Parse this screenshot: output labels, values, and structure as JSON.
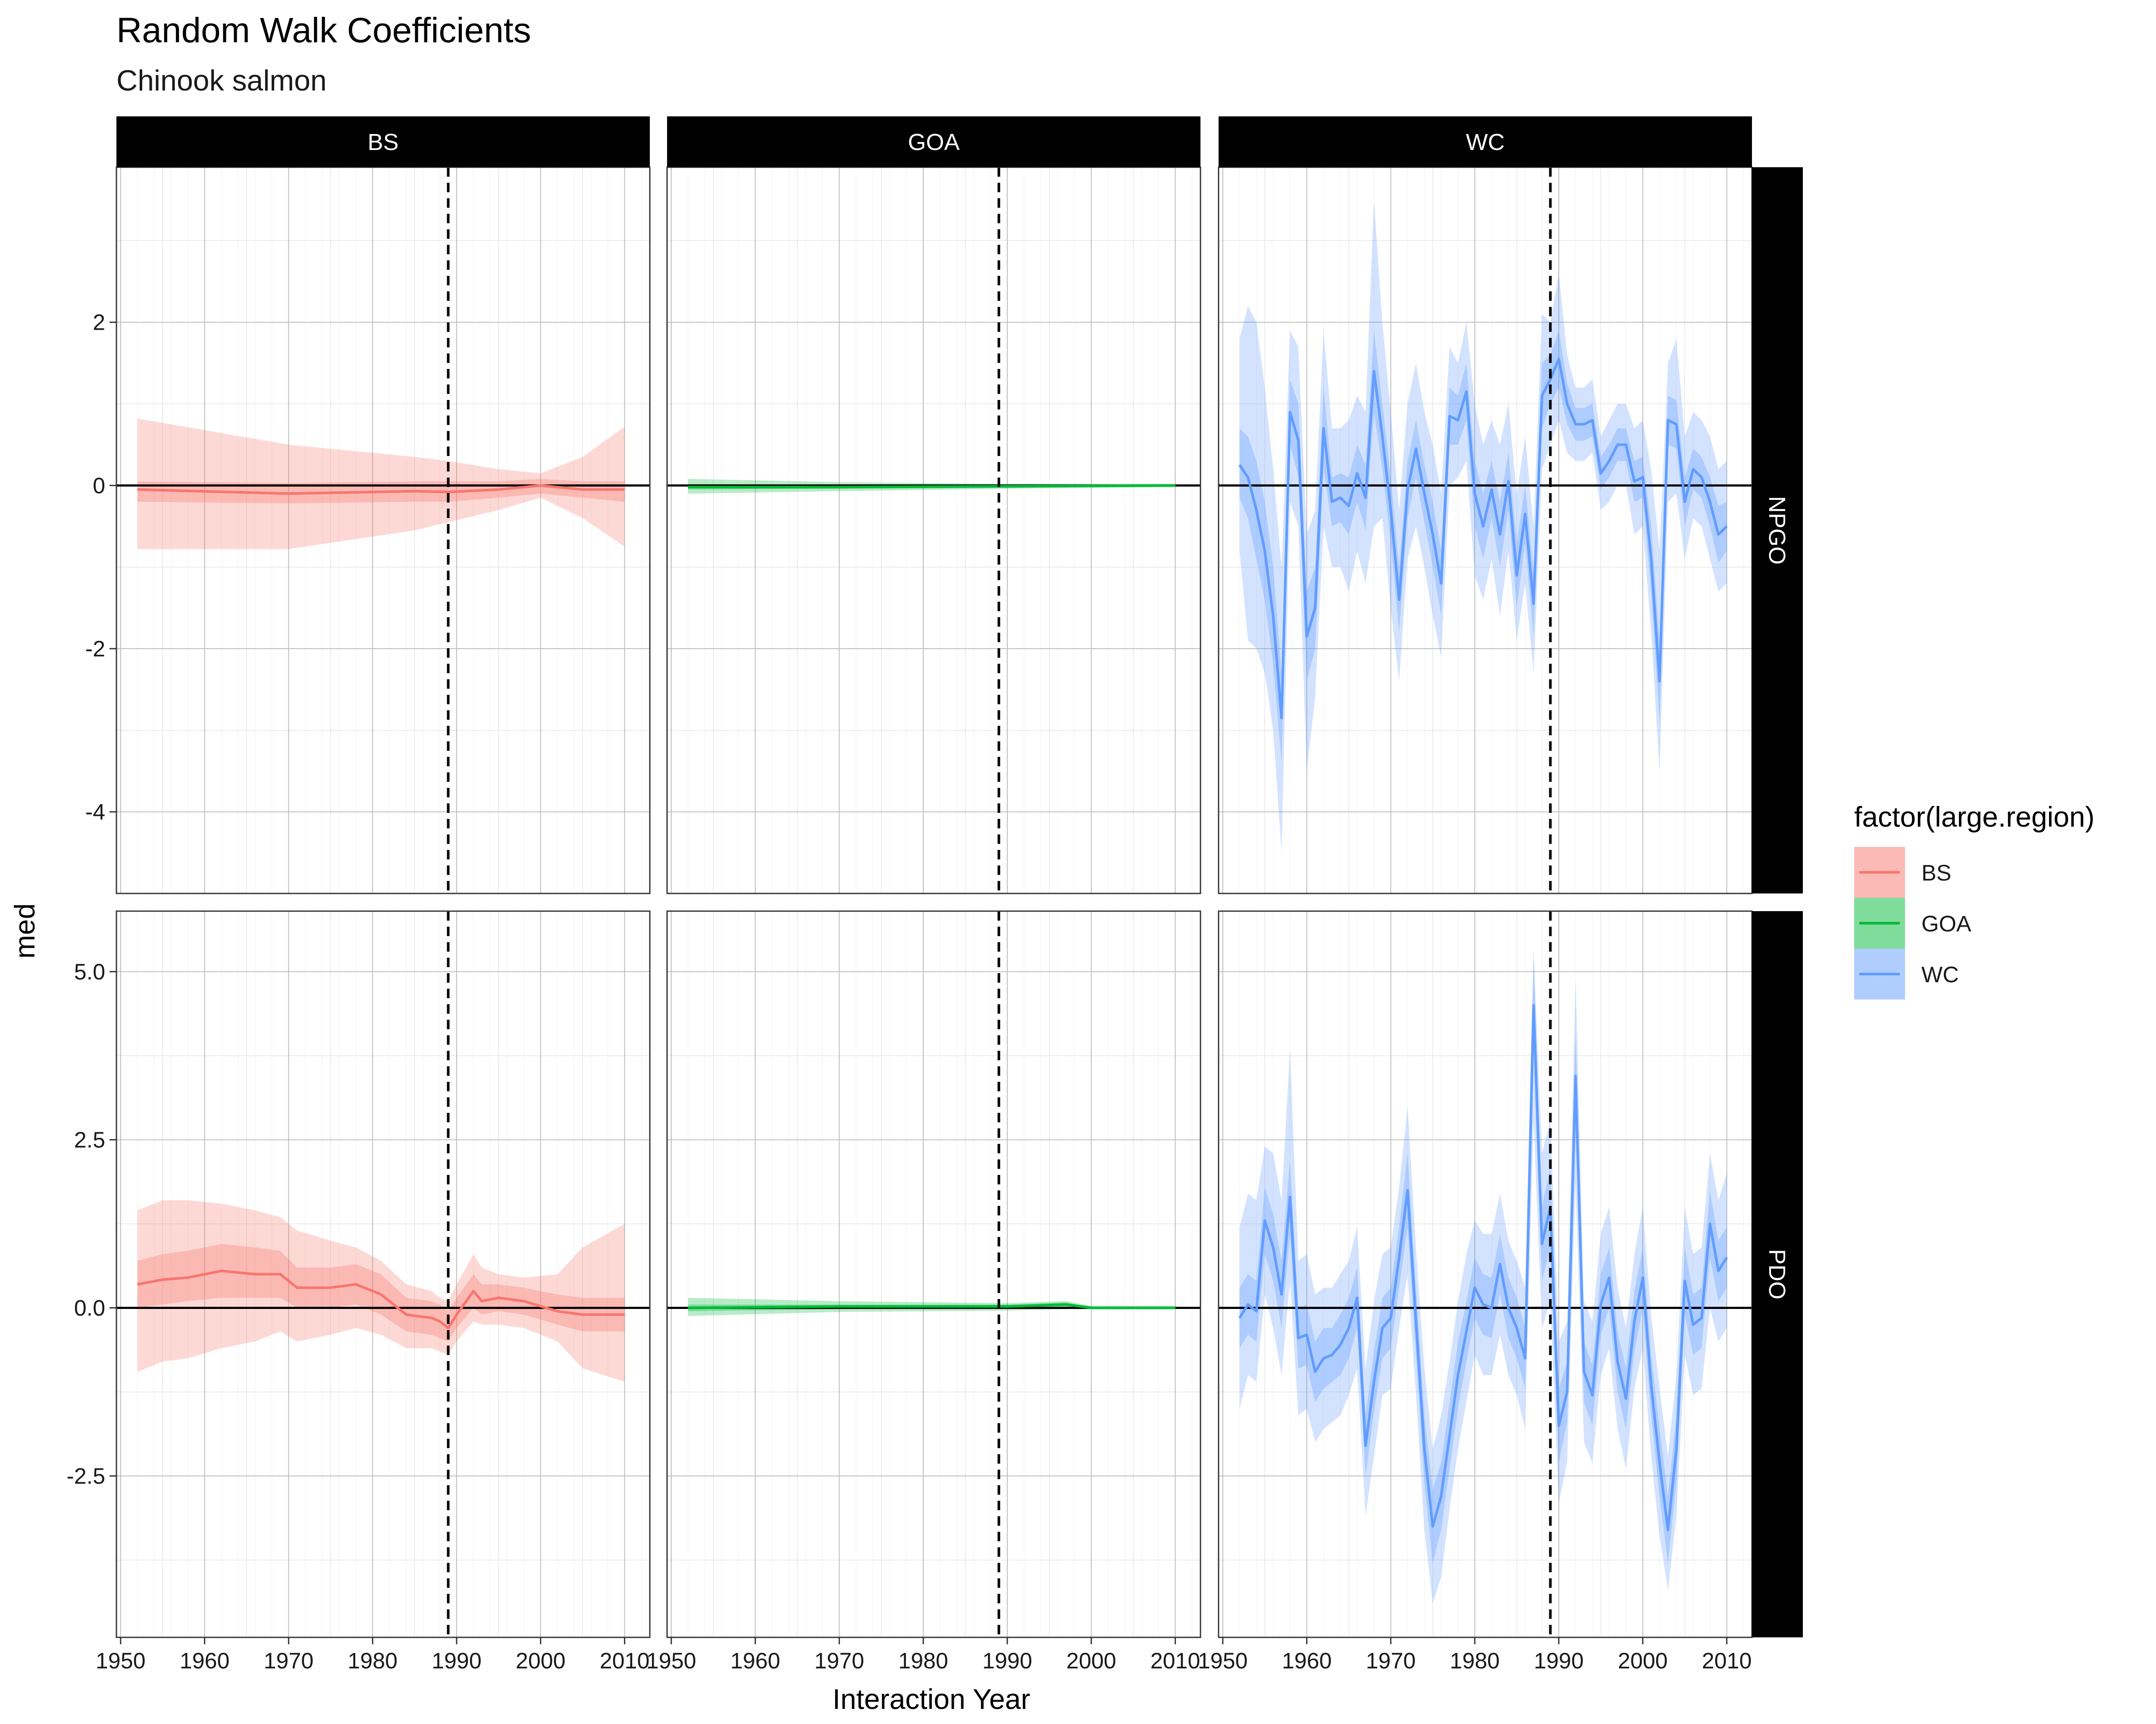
{
  "chart_data": {
    "type": "line",
    "title": "Random Walk Coefficients",
    "subtitle": "Chinook salmon",
    "xlabel": "Interaction Year",
    "ylabel": "med",
    "legend": {
      "title": "factor(large.region)",
      "position": "right",
      "entries": [
        {
          "label": "BS",
          "color": "#F8766D",
          "fill": "#F8766D"
        },
        {
          "label": "GOA",
          "color": "#00BA38",
          "fill": "#00BA38"
        },
        {
          "label": "WC",
          "color": "#619CFF",
          "fill": "#619CFF"
        }
      ]
    },
    "facet_cols": [
      "BS",
      "GOA",
      "WC"
    ],
    "facet_rows": [
      "NPGO",
      "PDO"
    ],
    "xlim": [
      1949.5,
      2013
    ],
    "x_ticks": [
      1950,
      1960,
      1970,
      1980,
      1990,
      2000,
      2010
    ],
    "vline_x": 1989,
    "hline_y": 0,
    "grid": true,
    "rows": [
      {
        "name": "NPGO",
        "ylim": [
          -5.0,
          3.9
        ],
        "y_ticks": [
          -4,
          -2,
          0,
          2
        ],
        "y_tick_labels": [
          "-4",
          "-2",
          "0",
          "2"
        ]
      },
      {
        "name": "PDO",
        "ylim": [
          -4.9,
          5.9
        ],
        "y_ticks": [
          -2.5,
          0,
          2.5,
          5
        ],
        "y_tick_labels": [
          "-2.5",
          "0.0",
          "2.5",
          "5.0"
        ]
      }
    ],
    "panels": [
      {
        "row": "NPGO",
        "col": "BS",
        "color": "#F8766D",
        "x": [
          1952,
          1970,
          1985,
          1989,
          1995,
          2000,
          2005,
          2010
        ],
        "med": [
          -0.05,
          -0.1,
          -0.07,
          -0.08,
          -0.05,
          0.0,
          -0.05,
          -0.05
        ],
        "inner_lo": [
          -0.2,
          -0.22,
          -0.2,
          -0.2,
          -0.15,
          -0.1,
          -0.15,
          -0.2
        ],
        "inner_hi": [
          0.05,
          0.03,
          0.05,
          0.05,
          0.05,
          0.08,
          0.05,
          0.05
        ],
        "outer_lo": [
          -0.78,
          -0.78,
          -0.55,
          -0.45,
          -0.3,
          -0.15,
          -0.4,
          -0.75
        ],
        "outer_hi": [
          0.82,
          0.5,
          0.35,
          0.3,
          0.2,
          0.15,
          0.35,
          0.72
        ]
      },
      {
        "row": "NPGO",
        "col": "GOA",
        "color": "#00BA38",
        "x": [
          1952,
          1970,
          1990,
          2010
        ],
        "med": [
          -0.02,
          -0.02,
          -0.01,
          0.0
        ],
        "inner_lo": [
          -0.05,
          -0.04,
          -0.03,
          -0.01
        ],
        "inner_hi": [
          0.02,
          0.01,
          0.01,
          0.01
        ],
        "outer_lo": [
          -0.1,
          -0.07,
          -0.04,
          -0.02
        ],
        "outer_hi": [
          0.08,
          0.04,
          0.02,
          0.02
        ]
      },
      {
        "row": "NPGO",
        "col": "WC",
        "color": "#619CFF",
        "x": [
          1952,
          1953,
          1954,
          1955,
          1956,
          1957,
          1958,
          1959,
          1960,
          1961,
          1962,
          1963,
          1964,
          1965,
          1966,
          1967,
          1968,
          1969,
          1970,
          1971,
          1972,
          1973,
          1974,
          1975,
          1976,
          1977,
          1978,
          1979,
          1980,
          1981,
          1982,
          1983,
          1984,
          1985,
          1986,
          1987,
          1988,
          1989,
          1990,
          1991,
          1992,
          1993,
          1994,
          1995,
          1996,
          1997,
          1998,
          1999,
          2000,
          2001,
          2002,
          2003,
          2004,
          2005,
          2006,
          2007,
          2008,
          2009,
          2010
        ],
        "med": [
          0.25,
          0.1,
          -0.3,
          -0.8,
          -1.6,
          -2.85,
          0.9,
          0.55,
          -1.85,
          -1.5,
          0.7,
          -0.2,
          -0.15,
          -0.25,
          0.15,
          -0.15,
          1.4,
          0.6,
          -0.3,
          -1.4,
          -0.05,
          0.45,
          -0.1,
          -0.6,
          -1.2,
          0.85,
          0.8,
          1.15,
          -0.1,
          -0.5,
          -0.05,
          -0.6,
          0.05,
          -1.1,
          -0.35,
          -1.45,
          1.1,
          1.3,
          1.55,
          1.0,
          0.75,
          0.75,
          0.8,
          0.15,
          0.3,
          0.5,
          0.5,
          0.05,
          0.1,
          -0.9,
          -2.4,
          0.8,
          0.75,
          -0.2,
          0.2,
          0.1,
          -0.2,
          -0.6,
          -0.5
        ],
        "inner_lo": [
          -0.15,
          -0.4,
          -0.9,
          -1.4,
          -2.2,
          -3.4,
          0.5,
          0.1,
          -2.4,
          -2.0,
          0.2,
          -0.5,
          -0.45,
          -0.6,
          -0.2,
          -0.55,
          0.9,
          0.2,
          -0.7,
          -1.8,
          -0.4,
          0.1,
          -0.45,
          -1.0,
          -1.6,
          0.5,
          0.5,
          0.8,
          -0.5,
          -0.9,
          -0.4,
          -1.0,
          -0.3,
          -1.5,
          -0.7,
          -1.85,
          0.7,
          1.0,
          1.2,
          0.75,
          0.55,
          0.55,
          0.6,
          -0.05,
          0.1,
          0.3,
          0.3,
          -0.2,
          -0.15,
          -1.3,
          -2.9,
          0.5,
          0.45,
          -0.5,
          -0.05,
          -0.15,
          -0.5,
          -0.95,
          -0.8
        ],
        "inner_hi": [
          0.7,
          0.6,
          0.3,
          -0.2,
          -1.0,
          -2.3,
          1.3,
          1.0,
          -1.3,
          -1.0,
          1.2,
          0.1,
          0.15,
          0.1,
          0.5,
          0.25,
          1.9,
          1.0,
          0.1,
          -1.0,
          0.3,
          0.8,
          0.25,
          -0.2,
          -0.8,
          1.2,
          1.1,
          1.5,
          0.3,
          -0.1,
          0.3,
          -0.2,
          0.4,
          -0.7,
          0.0,
          -1.05,
          1.5,
          1.6,
          1.9,
          1.25,
          0.95,
          0.95,
          1.0,
          0.35,
          0.5,
          0.7,
          0.7,
          0.3,
          0.35,
          -0.5,
          -1.9,
          1.1,
          1.05,
          0.1,
          0.45,
          0.35,
          0.1,
          -0.25,
          -0.2
        ],
        "outer_lo": [
          -0.8,
          -1.9,
          -2.0,
          -2.3,
          -3.0,
          -4.5,
          -0.2,
          -0.5,
          -3.5,
          -2.6,
          -0.5,
          -1.0,
          -1.0,
          -1.3,
          -0.8,
          -1.2,
          -0.5,
          -0.4,
          -1.5,
          -2.4,
          -0.9,
          -0.5,
          -1.0,
          -1.6,
          -2.1,
          0.0,
          0.1,
          0.3,
          -1.1,
          -1.4,
          -0.9,
          -1.6,
          -0.8,
          -1.9,
          -1.2,
          -2.3,
          0.2,
          0.5,
          0.8,
          0.4,
          0.3,
          0.3,
          0.4,
          -0.3,
          -0.2,
          0.0,
          0.0,
          -0.6,
          -0.5,
          -1.8,
          -3.5,
          -0.2,
          -0.1,
          -0.9,
          -0.4,
          -0.5,
          -0.9,
          -1.3,
          -1.2
        ],
        "outer_hi": [
          1.8,
          2.2,
          2.0,
          1.2,
          0.2,
          -1.0,
          1.9,
          1.7,
          -0.6,
          -0.3,
          1.9,
          0.7,
          0.7,
          0.8,
          1.1,
          0.9,
          3.5,
          2.0,
          0.9,
          -0.3,
          1.0,
          1.5,
          0.9,
          0.5,
          -0.1,
          1.7,
          1.5,
          2.0,
          1.0,
          0.5,
          0.8,
          0.5,
          1.0,
          -0.1,
          0.6,
          -0.5,
          2.1,
          2.0,
          2.6,
          1.6,
          1.2,
          1.2,
          1.3,
          0.6,
          0.8,
          1.0,
          1.0,
          0.7,
          0.8,
          0.2,
          -0.8,
          1.5,
          1.8,
          0.6,
          0.9,
          0.8,
          0.6,
          0.2,
          0.3
        ]
      },
      {
        "row": "PDO",
        "col": "BS",
        "color": "#F8766D",
        "x": [
          1952,
          1955,
          1958,
          1962,
          1966,
          1969,
          1971,
          1975,
          1978,
          1981,
          1984,
          1987,
          1988,
          1989,
          1990,
          1992,
          1993,
          1995,
          1998,
          2002,
          2005,
          2010
        ],
        "med": [
          0.35,
          0.42,
          0.45,
          0.55,
          0.5,
          0.5,
          0.3,
          0.3,
          0.35,
          0.2,
          -0.1,
          -0.15,
          -0.2,
          -0.3,
          -0.1,
          0.25,
          0.1,
          0.15,
          0.1,
          -0.05,
          -0.1,
          -0.1
        ],
        "inner_lo": [
          0.0,
          0.05,
          0.1,
          0.15,
          0.15,
          0.15,
          0.0,
          0.0,
          0.05,
          -0.1,
          -0.35,
          -0.4,
          -0.45,
          -0.5,
          -0.3,
          0.0,
          -0.1,
          -0.05,
          -0.1,
          -0.25,
          -0.35,
          -0.35
        ],
        "inner_hi": [
          0.7,
          0.8,
          0.85,
          0.95,
          0.9,
          0.85,
          0.6,
          0.6,
          0.65,
          0.5,
          0.15,
          0.1,
          0.05,
          -0.05,
          0.15,
          0.5,
          0.35,
          0.35,
          0.3,
          0.2,
          0.15,
          0.15
        ],
        "outer_lo": [
          -0.95,
          -0.8,
          -0.75,
          -0.6,
          -0.5,
          -0.35,
          -0.5,
          -0.4,
          -0.3,
          -0.4,
          -0.6,
          -0.6,
          -0.65,
          -0.7,
          -0.5,
          -0.2,
          -0.25,
          -0.25,
          -0.3,
          -0.5,
          -0.9,
          -1.1
        ],
        "outer_hi": [
          1.45,
          1.6,
          1.6,
          1.55,
          1.45,
          1.35,
          1.15,
          1.0,
          0.9,
          0.7,
          0.35,
          0.25,
          0.15,
          0.1,
          0.35,
          0.8,
          0.6,
          0.5,
          0.45,
          0.5,
          0.9,
          1.25
        ]
      },
      {
        "row": "PDO",
        "col": "GOA",
        "color": "#00BA38",
        "x": [
          1952,
          1970,
          1990,
          1997,
          2000,
          2010
        ],
        "med": [
          0.0,
          0.02,
          0.02,
          0.05,
          0.0,
          0.0
        ],
        "inner_lo": [
          -0.05,
          -0.02,
          -0.01,
          0.01,
          -0.01,
          -0.01
        ],
        "inner_hi": [
          0.05,
          0.05,
          0.05,
          0.08,
          0.01,
          0.01
        ],
        "outer_lo": [
          -0.12,
          -0.06,
          -0.04,
          -0.02,
          -0.02,
          -0.02
        ],
        "outer_hi": [
          0.15,
          0.1,
          0.07,
          0.1,
          0.03,
          0.03
        ]
      },
      {
        "row": "PDO",
        "col": "WC",
        "color": "#619CFF",
        "x": [
          1952,
          1953,
          1954,
          1955,
          1956,
          1957,
          1958,
          1959,
          1960,
          1961,
          1962,
          1963,
          1964,
          1965,
          1966,
          1967,
          1968,
          1969,
          1970,
          1971,
          1972,
          1973,
          1974,
          1975,
          1976,
          1977,
          1978,
          1979,
          1980,
          1981,
          1982,
          1983,
          1984,
          1985,
          1986,
          1987,
          1988,
          1989,
          1990,
          1991,
          1992,
          1993,
          1994,
          1995,
          1996,
          1997,
          1998,
          1999,
          2000,
          2001,
          2002,
          2003,
          2004,
          2005,
          2006,
          2007,
          2008,
          2009,
          2010
        ],
        "med": [
          -0.15,
          0.05,
          -0.05,
          1.3,
          0.9,
          0.2,
          1.65,
          -0.45,
          -0.4,
          -0.95,
          -0.75,
          -0.7,
          -0.55,
          -0.3,
          0.15,
          -2.05,
          -1.1,
          -0.3,
          -0.15,
          0.75,
          1.75,
          -0.2,
          -2.1,
          -3.25,
          -2.8,
          -1.9,
          -1.0,
          -0.35,
          0.3,
          0.05,
          0.0,
          0.65,
          0.0,
          -0.3,
          -0.75,
          4.5,
          0.95,
          1.5,
          -1.75,
          -1.25,
          3.45,
          -0.95,
          -1.3,
          0.05,
          0.45,
          -0.8,
          -1.35,
          -0.2,
          0.45,
          -1.15,
          -2.3,
          -3.3,
          -2.1,
          0.4,
          -0.25,
          -0.15,
          1.25,
          0.55,
          0.75
        ],
        "inner_lo": [
          -0.6,
          -0.4,
          -0.5,
          0.8,
          0.4,
          -0.3,
          1.1,
          -0.9,
          -0.85,
          -1.4,
          -1.2,
          -1.1,
          -1.0,
          -0.75,
          -0.3,
          -2.5,
          -1.55,
          -0.75,
          -0.6,
          0.3,
          1.2,
          -0.7,
          -2.6,
          -3.8,
          -3.3,
          -2.4,
          -1.5,
          -0.8,
          -0.15,
          -0.4,
          -0.45,
          0.2,
          -0.45,
          -0.75,
          -1.2,
          3.8,
          0.4,
          0.9,
          -2.3,
          -1.7,
          2.8,
          -1.4,
          -1.75,
          -0.4,
          0.0,
          -1.25,
          -1.8,
          -0.65,
          0.0,
          -1.6,
          -2.8,
          -3.8,
          -2.6,
          -0.1,
          -0.7,
          -0.6,
          0.75,
          0.1,
          0.3
        ],
        "inner_hi": [
          0.3,
          0.5,
          0.4,
          1.8,
          1.4,
          0.7,
          2.2,
          0.0,
          0.05,
          -0.5,
          -0.3,
          -0.3,
          -0.1,
          0.15,
          0.6,
          -1.6,
          -0.65,
          0.15,
          0.3,
          1.2,
          2.3,
          0.3,
          -1.6,
          -2.7,
          -2.3,
          -1.4,
          -0.5,
          0.1,
          0.75,
          0.5,
          0.45,
          1.1,
          0.45,
          0.15,
          -0.3,
          5.2,
          1.5,
          2.1,
          -1.2,
          -0.8,
          4.1,
          -0.5,
          -0.85,
          0.5,
          0.9,
          -0.35,
          -0.9,
          0.25,
          0.9,
          -0.7,
          -1.8,
          -2.8,
          -1.6,
          0.9,
          0.2,
          0.3,
          1.75,
          1.0,
          1.2
        ],
        "outer_lo": [
          -1.5,
          -1.0,
          -1.1,
          0.2,
          -0.3,
          -1.0,
          0.4,
          -1.6,
          -1.5,
          -2.0,
          -1.8,
          -1.7,
          -1.6,
          -1.3,
          -0.9,
          -3.1,
          -2.2,
          -1.3,
          -1.2,
          -0.3,
          0.5,
          -1.3,
          -3.3,
          -4.4,
          -4.0,
          -3.0,
          -2.1,
          -1.4,
          -0.7,
          -1.0,
          -1.0,
          -0.4,
          -1.0,
          -1.3,
          -1.8,
          2.8,
          -0.3,
          0.1,
          -2.9,
          -2.3,
          1.9,
          -2.0,
          -2.3,
          -1.0,
          -0.6,
          -1.8,
          -2.4,
          -1.2,
          -0.6,
          -2.2,
          -3.4,
          -4.2,
          -3.1,
          -0.7,
          -1.3,
          -1.2,
          0.0,
          -0.5,
          -0.3
        ],
        "outer_hi": [
          1.2,
          1.7,
          1.6,
          2.4,
          2.3,
          1.6,
          3.85,
          0.7,
          0.8,
          0.2,
          0.3,
          0.3,
          0.5,
          0.7,
          1.2,
          -0.9,
          0.1,
          0.8,
          0.9,
          1.8,
          3.0,
          0.9,
          -0.9,
          -2.1,
          -1.6,
          -0.8,
          0.1,
          0.8,
          1.3,
          1.1,
          1.1,
          1.7,
          1.0,
          0.7,
          0.3,
          5.35,
          2.3,
          2.8,
          -0.5,
          -0.2,
          4.9,
          0.1,
          -0.2,
          1.1,
          1.5,
          0.3,
          -0.3,
          0.8,
          1.5,
          -0.1,
          -1.2,
          -2.2,
          -1.0,
          1.5,
          0.8,
          0.9,
          2.3,
          1.6,
          2.0
        ]
      }
    ]
  }
}
